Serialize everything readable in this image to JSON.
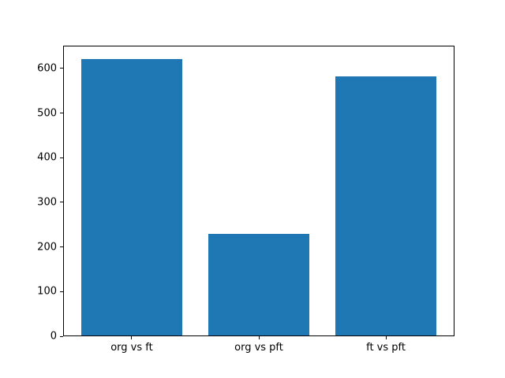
{
  "chart_data": {
    "type": "bar",
    "title": "",
    "xlabel": "",
    "ylabel": "",
    "categories": [
      "org vs ft",
      "org vs pft",
      "ft vs pft"
    ],
    "values": [
      620,
      228,
      580
    ],
    "x_positions": [
      0,
      1,
      2
    ],
    "bar_width": 0.8,
    "xlim": [
      -0.54,
      2.54
    ],
    "ylim": [
      0,
      651
    ],
    "yticks": [
      0,
      100,
      200,
      300,
      400,
      500,
      600
    ],
    "bar_color": "#1f77b4",
    "background_color": "#ffffff",
    "spine_color": "#000000",
    "grid": false,
    "legend": "none"
  }
}
